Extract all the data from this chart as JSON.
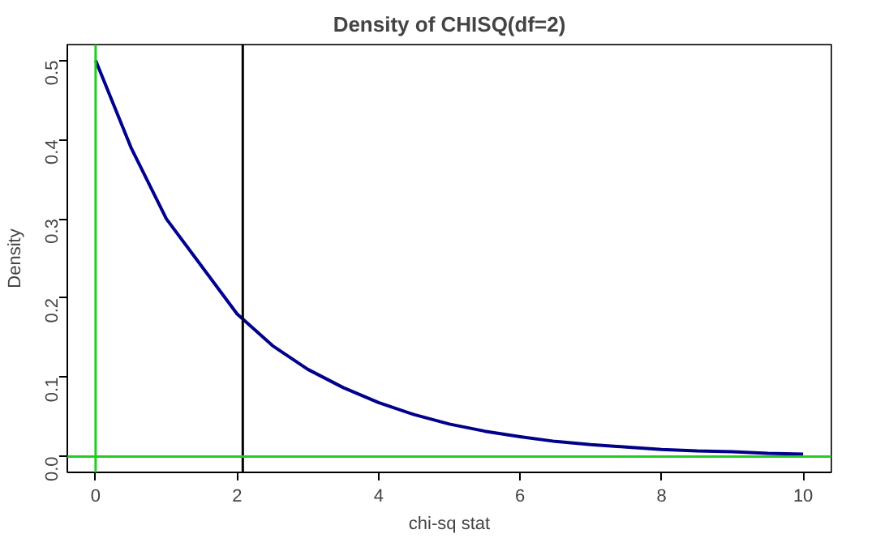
{
  "chart_data": {
    "type": "line",
    "title": "Density of CHISQ(df=2)",
    "xlabel": "chi-sq stat",
    "ylabel": "Density",
    "x": [
      0,
      0.5,
      1,
      1.5,
      2,
      2.5,
      3,
      3.5,
      4,
      4.5,
      5,
      5.5,
      6,
      6.5,
      7,
      7.5,
      8,
      8.5,
      9,
      9.5,
      10
    ],
    "series": [
      {
        "color": "#00008b",
        "values": [
          0.5,
          0.39,
          0.3,
          0.24,
          0.18,
          0.14,
          0.11,
          0.087,
          0.068,
          0.053,
          0.041,
          0.032,
          0.025,
          0.019,
          0.015,
          0.012,
          0.009,
          0.007,
          0.006,
          0.004,
          0.003
        ]
      }
    ],
    "xlim": [
      -0.4,
      10.4
    ],
    "ylim": [
      -0.02,
      0.52
    ],
    "xticks": [
      0,
      2,
      4,
      6,
      8,
      10
    ],
    "yticks": [
      {
        "value": 0,
        "label": "0.0"
      },
      0.1,
      0.2,
      0.3,
      0.4,
      0.5
    ],
    "ref_lines": [
      {
        "axis": "x",
        "value": 2.08,
        "color": "#000000"
      },
      {
        "axis": "x",
        "value": 0,
        "color": "#22cc22"
      },
      {
        "axis": "y",
        "value": 0,
        "color": "#22cc22"
      }
    ],
    "grid": false,
    "marker": "none",
    "line_style": "solid"
  }
}
